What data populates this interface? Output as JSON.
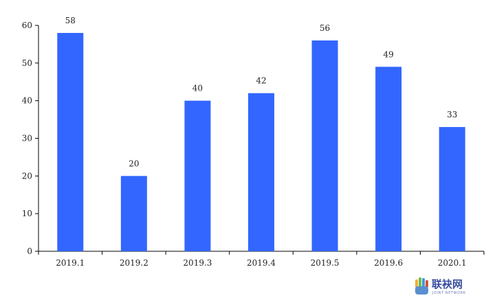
{
  "chart_data": {
    "type": "bar",
    "title": "",
    "xlabel": "",
    "ylabel": "",
    "categories": [
      "2019.1",
      "2019.2",
      "2019.3",
      "2019.4",
      "2019.5",
      "2019.6",
      "2020.1"
    ],
    "values": [
      58,
      20,
      40,
      42,
      56,
      49,
      33
    ],
    "ylim": [
      0,
      60
    ],
    "yticks": [
      0,
      10,
      20,
      30,
      40,
      50,
      60
    ],
    "grid": false,
    "bar_color": "#3366ff",
    "data_labels": true
  },
  "watermark": {
    "text": "联袂网",
    "subtext": "JOINT·NETWORK",
    "icon": "hand-icon",
    "color": "#3a4fa0"
  }
}
